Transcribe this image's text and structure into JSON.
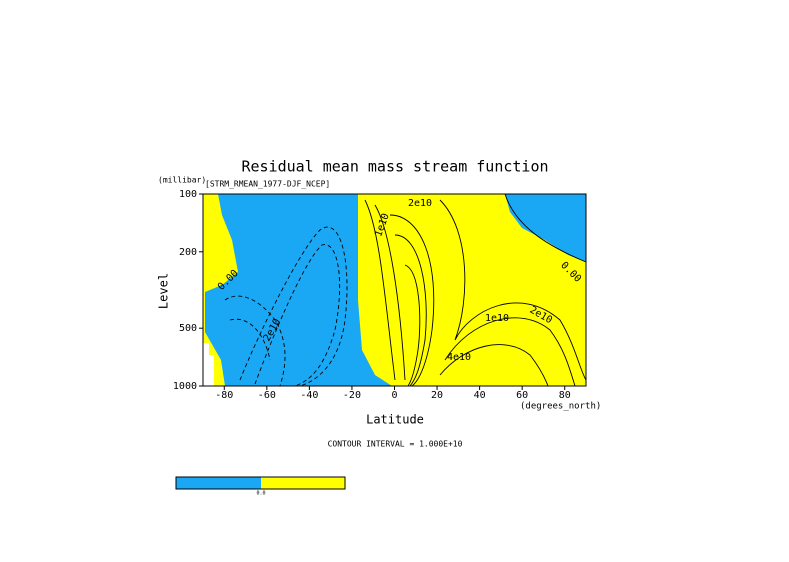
{
  "chart_data": {
    "type": "contour",
    "title": "Residual mean mass stream function",
    "subtitle": "[STRM_RMEAN_1977-DJF_NCEP]",
    "x_label": "Latitude",
    "x_unit": "(degrees_north)",
    "y_label": "Level",
    "y_unit": "(millibar)",
    "xlim": [
      -90,
      90
    ],
    "xticks": [
      -80,
      -60,
      -40,
      -20,
      0,
      20,
      40,
      60,
      80
    ],
    "ylim": [
      1000,
      100
    ],
    "yticks": [
      100,
      200,
      500,
      1000
    ],
    "log_y": true,
    "annotation": "CONTOUR INTERVAL = 1.000E+10",
    "contour_labels": [
      "2e10",
      "1e10",
      "0.00",
      "2e10",
      "1e10",
      "2e10",
      "0.00",
      "4e10"
    ],
    "colors": {
      "negative": "#1aa8f5",
      "positive": "#ffff00",
      "missing": "#ffffff"
    },
    "colorbar_label": "0.0"
  }
}
